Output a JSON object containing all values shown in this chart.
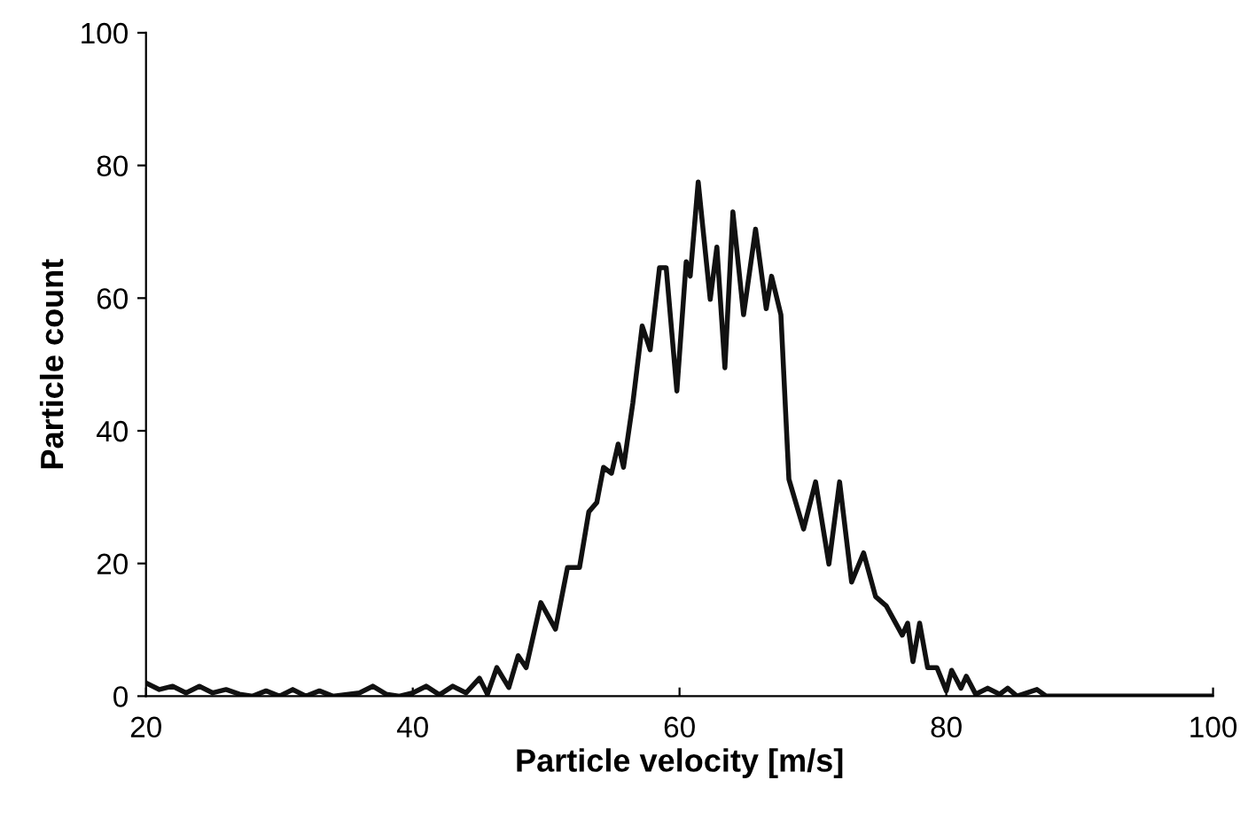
{
  "chart_data": {
    "type": "line",
    "xlabel": "Particle velocity [m/s]",
    "ylabel": "Particle count",
    "xlim": [
      20,
      100
    ],
    "ylim": [
      0,
      100
    ],
    "xticks": [
      20,
      40,
      60,
      80,
      100
    ],
    "yticks": [
      0,
      20,
      40,
      60,
      80,
      100
    ],
    "grid": false,
    "marker": "none",
    "line_style": "solid",
    "series": [
      {
        "color": "#111111",
        "x": [
          20,
          21,
          22,
          23,
          24,
          25,
          26,
          27,
          28,
          29,
          30,
          31,
          32,
          33,
          34,
          36,
          37,
          38,
          39,
          40,
          41,
          42,
          43,
          44,
          45.0,
          45.6,
          46.3,
          47.2,
          47.9,
          48.5,
          49.6,
          50.7,
          51.6,
          52.5,
          53.2,
          53.8,
          54.3,
          54.9,
          55.4,
          55.8,
          56.5,
          57.2,
          57.8,
          58.5,
          59.0,
          59.8,
          60.5,
          60.8,
          61.4,
          62.3,
          62.8,
          63.4,
          64.0,
          64.8,
          65.7,
          66.5,
          66.9,
          67.6,
          68.2,
          69.3,
          70.2,
          71.2,
          72.0,
          72.9,
          73.8,
          74.7,
          75.5,
          76.7,
          77.1,
          77.5,
          78.0,
          78.6,
          79.3,
          80.0,
          80.4,
          81.1,
          81.5,
          82.2,
          83.1,
          84.0,
          84.6,
          85.3,
          86.8,
          87.5,
          100
        ],
        "values": [
          2,
          1,
          1.5,
          0.5,
          1.5,
          0.5,
          1,
          0.3,
          0,
          0.8,
          0,
          1,
          0,
          0.8,
          0,
          0.5,
          1.5,
          0.3,
          0,
          0.5,
          1.5,
          0.2,
          1.5,
          0.5,
          2.7,
          0.3,
          4.3,
          1.3,
          6.1,
          4.3,
          14.1,
          10.1,
          19.4,
          19.4,
          27.8,
          29.2,
          34.5,
          33.6,
          38.0,
          34.5,
          44.2,
          55.8,
          52.2,
          64.6,
          64.6,
          46.0,
          65.5,
          63.3,
          77.5,
          59.8,
          67.7,
          49.5,
          73.0,
          57.5,
          70.4,
          58.4,
          63.3,
          57.5,
          32.7,
          25.2,
          32.3,
          19.9,
          32.3,
          17.2,
          21.6,
          15.0,
          13.6,
          9.2,
          11.0,
          5.2,
          11.0,
          4.3,
          4.3,
          0.8,
          3.9,
          1.2,
          3.0,
          0.3,
          1.2,
          0.3,
          1.2,
          0,
          1.0,
          0,
          0
        ]
      }
    ]
  }
}
